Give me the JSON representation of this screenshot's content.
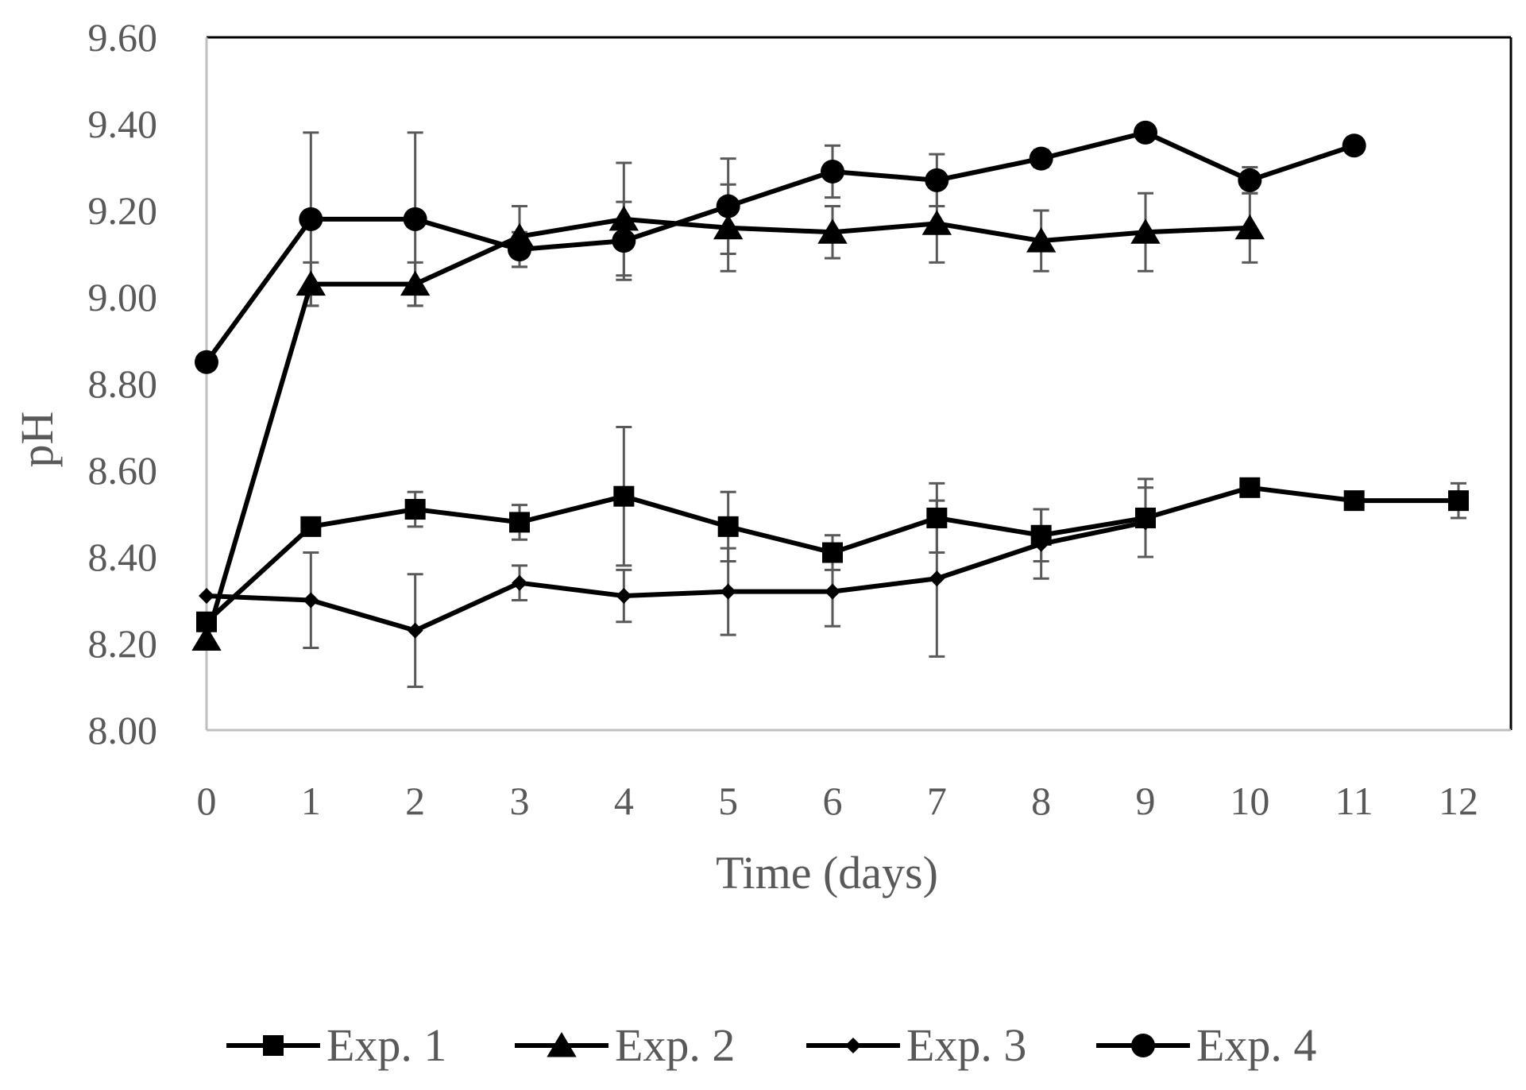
{
  "chart_data": {
    "type": "line",
    "title": "",
    "xlabel": "Time (days)",
    "ylabel": "pH",
    "xlim": [
      0,
      12
    ],
    "ylim": [
      8.0,
      9.6
    ],
    "x_ticks": [
      "0",
      "1",
      "2",
      "3",
      "4",
      "5",
      "6",
      "7",
      "8",
      "9",
      "10",
      "11",
      "12"
    ],
    "y_ticks": [
      "8.00",
      "8.20",
      "8.40",
      "8.60",
      "8.80",
      "9.00",
      "9.20",
      "9.40",
      "9.60"
    ],
    "legend_position": "bottom",
    "grid": false,
    "colors": {
      "series": "#000000",
      "axis": "#bfbfbf",
      "frame": "#000000",
      "text": "#595959",
      "errorbar": "#595959"
    },
    "series": [
      {
        "name": "Exp. 1",
        "marker": "square",
        "x": [
          0,
          1,
          2,
          3,
          4,
          5,
          6,
          7,
          8,
          9,
          10,
          11,
          12
        ],
        "y": [
          8.25,
          8.47,
          8.51,
          8.48,
          8.54,
          8.47,
          8.41,
          8.49,
          8.45,
          8.49,
          8.56,
          8.53,
          8.53
        ],
        "err": [
          0.02,
          0.02,
          0.04,
          0.04,
          0.16,
          0.08,
          0.04,
          0.08,
          0.06,
          0.09,
          0.02,
          0.02,
          0.04
        ]
      },
      {
        "name": "Exp. 2",
        "marker": "triangle",
        "x": [
          0,
          1,
          2,
          3,
          4,
          5,
          6,
          7,
          8,
          9,
          10
        ],
        "y": [
          8.21,
          9.03,
          9.03,
          9.14,
          9.18,
          9.16,
          9.15,
          9.17,
          9.13,
          9.15,
          9.16
        ],
        "err": [
          0,
          0.05,
          0.05,
          0.07,
          0.13,
          0.1,
          0.06,
          0.09,
          0.07,
          0.09,
          0.08
        ]
      },
      {
        "name": "Exp. 3",
        "marker": "diamond",
        "x": [
          0,
          1,
          2,
          3,
          4,
          5,
          6,
          7,
          8,
          9
        ],
        "y": [
          8.31,
          8.3,
          8.23,
          8.34,
          8.31,
          8.32,
          8.32,
          8.35,
          8.43,
          8.48
        ],
        "err": [
          0,
          0.11,
          0.13,
          0.04,
          0.06,
          0.1,
          0.08,
          0.18,
          0.08,
          0.08
        ]
      },
      {
        "name": "Exp. 4",
        "marker": "circle",
        "x": [
          0,
          1,
          2,
          3,
          4,
          5,
          6,
          7,
          8,
          9,
          10,
          11
        ],
        "y": [
          8.85,
          9.18,
          9.18,
          9.11,
          9.13,
          9.21,
          9.29,
          9.27,
          9.32,
          9.38,
          9.27,
          9.35
        ],
        "err": [
          0,
          0.2,
          0.2,
          0.04,
          0.09,
          0.11,
          0.06,
          0.06,
          0.02,
          0,
          0.03,
          0
        ]
      }
    ]
  }
}
